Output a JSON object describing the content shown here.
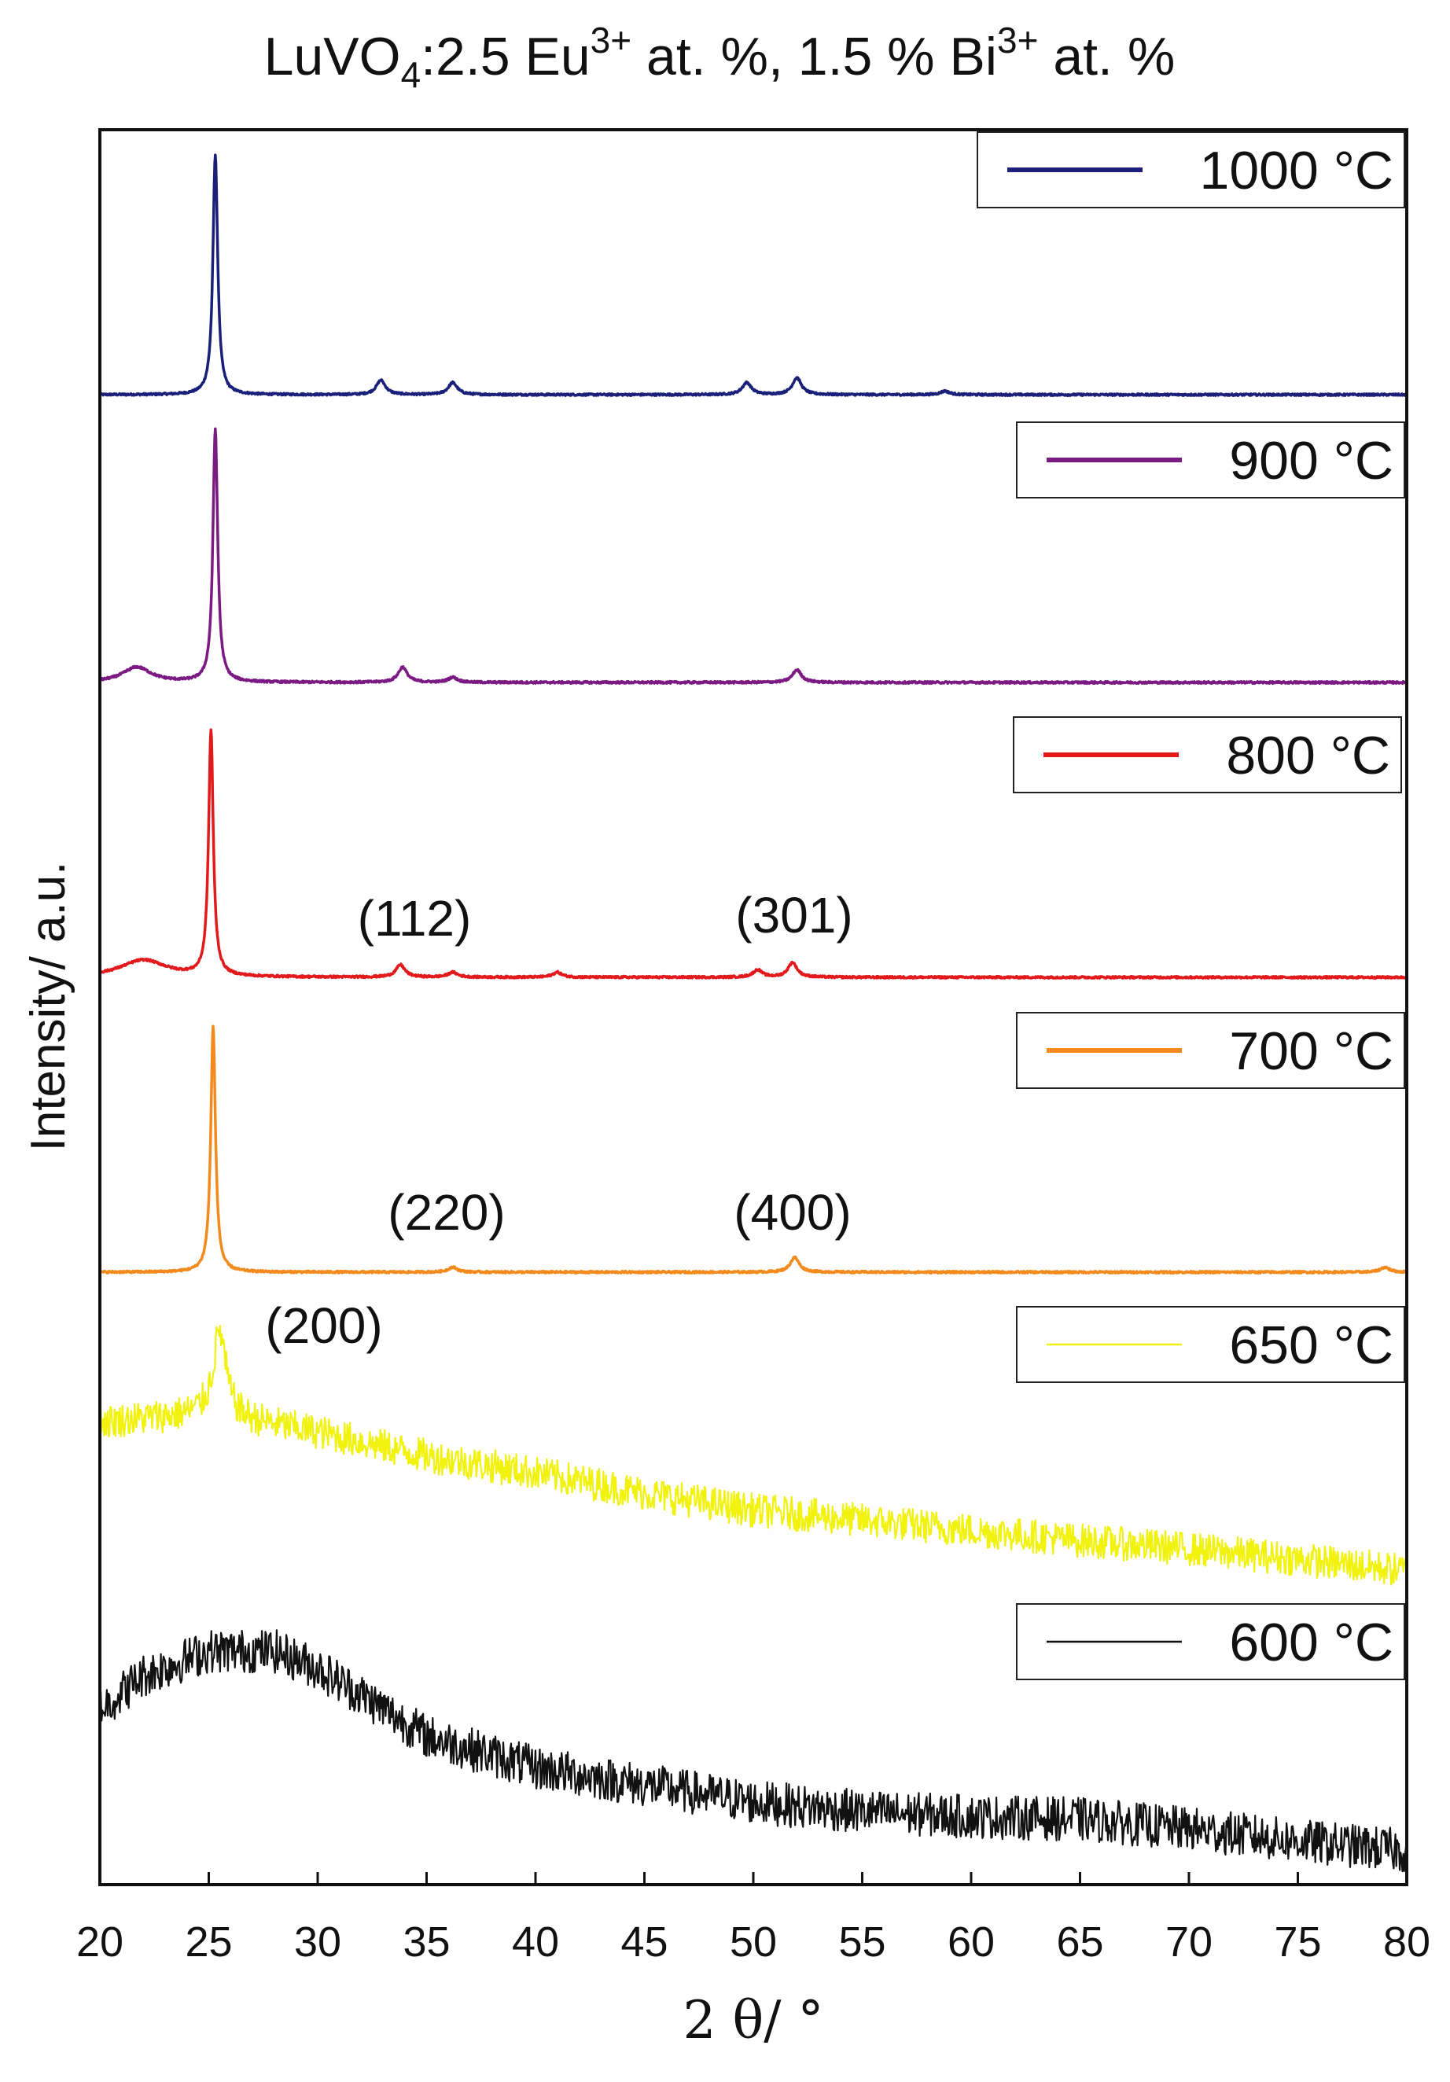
{
  "chart_data": {
    "type": "line",
    "title": {
      "base": "LuVO",
      "sub": "4",
      "after_sub": ":2.5  Eu",
      "sup1": "3+",
      "middle": " at. %, 1.5 % Bi",
      "sup2": "3+",
      "end": " at. %"
    },
    "xlabel": "2 θ/ °",
    "ylabel": "Intensity/ a.u.",
    "xlim": [
      20,
      80
    ],
    "xticks": [
      20,
      25,
      30,
      35,
      40,
      45,
      50,
      55,
      60,
      65,
      70,
      75,
      80
    ],
    "y_ticks_shown": false,
    "grid": false,
    "legend_placement": "right, one box per stacked trace",
    "series": [
      {
        "name": "1000 °C",
        "color": "#1a1f7a",
        "style": "crystalline",
        "peaks": [
          {
            "x": 25.3,
            "h": 1.0,
            "w": 0.13
          },
          {
            "x": 32.9,
            "h": 0.06,
            "w": 0.25
          },
          {
            "x": 36.2,
            "h": 0.05,
            "w": 0.25
          },
          {
            "x": 49.7,
            "h": 0.05,
            "w": 0.25
          },
          {
            "x": 52.0,
            "h": 0.07,
            "w": 0.25
          },
          {
            "x": 58.8,
            "h": 0.015,
            "w": 0.25
          }
        ]
      },
      {
        "name": "900 °C",
        "color": "#7b1a82",
        "style": "crystalline",
        "peaks": [
          {
            "x": 21.7,
            "h": 0.06,
            "w": 0.8
          },
          {
            "x": 25.3,
            "h": 1.0,
            "w": 0.13
          },
          {
            "x": 33.9,
            "h": 0.06,
            "w": 0.25
          },
          {
            "x": 36.2,
            "h": 0.02,
            "w": 0.25
          },
          {
            "x": 52.0,
            "h": 0.05,
            "w": 0.25
          }
        ]
      },
      {
        "name": "800 °C",
        "color": "#e31a1c",
        "style": "crystalline",
        "peaks": [
          {
            "x": 22.0,
            "h": 0.07,
            "w": 1.3
          },
          {
            "x": 25.1,
            "h": 1.0,
            "w": 0.13
          },
          {
            "x": 33.8,
            "h": 0.05,
            "w": 0.25
          },
          {
            "x": 36.2,
            "h": 0.02,
            "w": 0.25
          },
          {
            "x": 41.0,
            "h": 0.02,
            "w": 0.25
          },
          {
            "x": 50.2,
            "h": 0.03,
            "w": 0.25
          },
          {
            "x": 51.8,
            "h": 0.06,
            "w": 0.25
          }
        ]
      },
      {
        "name": "700 °C",
        "color": "#f28a1d",
        "style": "crystalline",
        "peaks": [
          {
            "x": 25.2,
            "h": 1.0,
            "w": 0.13
          },
          {
            "x": 36.2,
            "h": 0.02,
            "w": 0.25
          },
          {
            "x": 51.9,
            "h": 0.06,
            "w": 0.25
          },
          {
            "x": 79.0,
            "h": 0.02,
            "w": 0.25
          }
        ]
      },
      {
        "name": "650 °C",
        "color": "#f2f20f",
        "style": "amorphous-with-peak",
        "baseline": [
          [
            20,
            0.88
          ],
          [
            25,
            0.93
          ],
          [
            30,
            0.82
          ],
          [
            35,
            0.68
          ],
          [
            40,
            0.58
          ],
          [
            45,
            0.46
          ],
          [
            50,
            0.36
          ],
          [
            55,
            0.3
          ],
          [
            60,
            0.24
          ],
          [
            65,
            0.18
          ],
          [
            70,
            0.13
          ],
          [
            75,
            0.07
          ],
          [
            80,
            0.0
          ]
        ],
        "peaks": [
          {
            "x": 25.5,
            "h": 0.5,
            "w": 0.35
          }
        ]
      },
      {
        "name": "600 °C",
        "color": "#111111",
        "style": "amorphous",
        "baseline": [
          [
            20,
            0.58
          ],
          [
            22,
            0.72
          ],
          [
            25,
            0.82
          ],
          [
            28,
            0.82
          ],
          [
            30,
            0.75
          ],
          [
            32,
            0.64
          ],
          [
            35,
            0.47
          ],
          [
            40,
            0.34
          ],
          [
            45,
            0.27
          ],
          [
            50,
            0.2
          ],
          [
            55,
            0.16
          ],
          [
            60,
            0.14
          ],
          [
            65,
            0.13
          ],
          [
            70,
            0.09
          ],
          [
            75,
            0.04
          ],
          [
            80,
            0.0
          ]
        ]
      }
    ],
    "annotations": [
      "(200)",
      "(220)",
      "(400)",
      "(112)",
      "(301)"
    ]
  }
}
